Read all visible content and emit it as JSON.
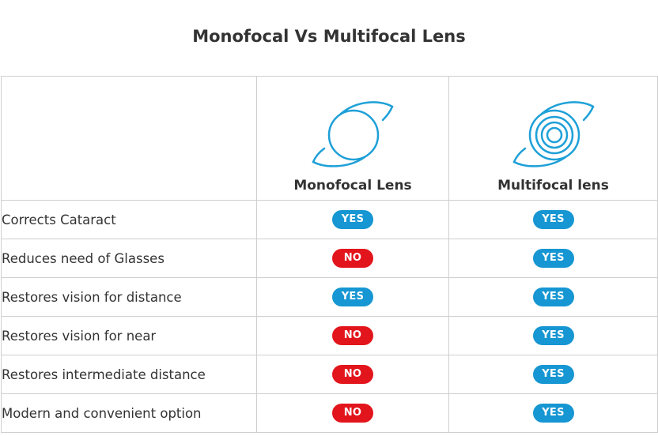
{
  "title": "Monofocal Vs Multifocal Lens",
  "columns": [
    {
      "label": "Monofocal Lens",
      "icon": "monofocal-lens-icon"
    },
    {
      "label": "Multifocal lens",
      "icon": "multifocal-lens-icon"
    }
  ],
  "rows": [
    {
      "feature": "Corrects Cataract",
      "mono": "YES",
      "multi": "YES"
    },
    {
      "feature": "Reduces need of Glasses",
      "mono": "NO",
      "multi": "YES"
    },
    {
      "feature": "Restores vision for distance",
      "mono": "YES",
      "multi": "YES"
    },
    {
      "feature": "Restores vision for near",
      "mono": "NO",
      "multi": "YES"
    },
    {
      "feature": "Restores intermediate distance",
      "mono": "NO",
      "multi": "YES"
    },
    {
      "feature": "Modern and convenient option",
      "mono": "NO",
      "multi": "YES"
    }
  ],
  "colors": {
    "yes": "#1696d2",
    "no": "#e3151c",
    "icon": "#1ea0d8"
  }
}
